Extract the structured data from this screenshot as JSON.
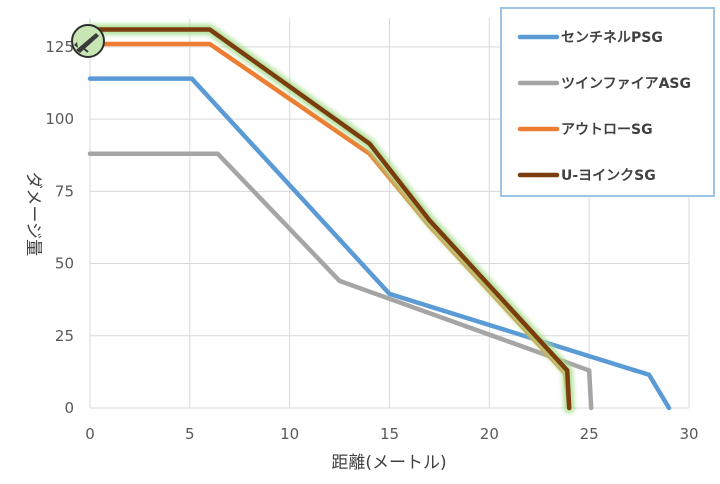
{
  "chart_data": {
    "type": "line",
    "xlabel": "距離(メートル)",
    "ylabel": "ダメージ量",
    "xlim": [
      0,
      30
    ],
    "ylim": [
      0,
      135
    ],
    "xticks": [
      0,
      5,
      10,
      15,
      20,
      25,
      30
    ],
    "yticks": [
      0,
      25,
      50,
      75,
      100,
      125
    ],
    "grid": true,
    "legend_position": "top-right",
    "series": [
      {
        "name": "センチネルPSG",
        "color": "#5b9bd5",
        "x": [
          0,
          5.1,
          15,
          28,
          29
        ],
        "y": [
          114,
          114,
          39.5,
          11.5,
          0
        ]
      },
      {
        "name": "ツインファイアASG",
        "color": "#a5a5a5",
        "x": [
          0,
          6.4,
          12.5,
          25,
          25.1
        ],
        "y": [
          88,
          88,
          44,
          13,
          0
        ]
      },
      {
        "name": "アウトローSG",
        "color": "#ed7d31",
        "x": [
          0,
          6,
          14,
          17,
          23.8,
          24
        ],
        "y": [
          126,
          126,
          88,
          63,
          12,
          0
        ]
      },
      {
        "name": "U-ヨインクSG",
        "color": "#7b3c0e",
        "highlight": "#a9dd8f",
        "x": [
          0,
          6,
          14,
          17,
          23.9,
          24
        ],
        "y": [
          131,
          131,
          91.5,
          65,
          13,
          0
        ]
      }
    ],
    "icon": "shotgun-badge-icon"
  }
}
